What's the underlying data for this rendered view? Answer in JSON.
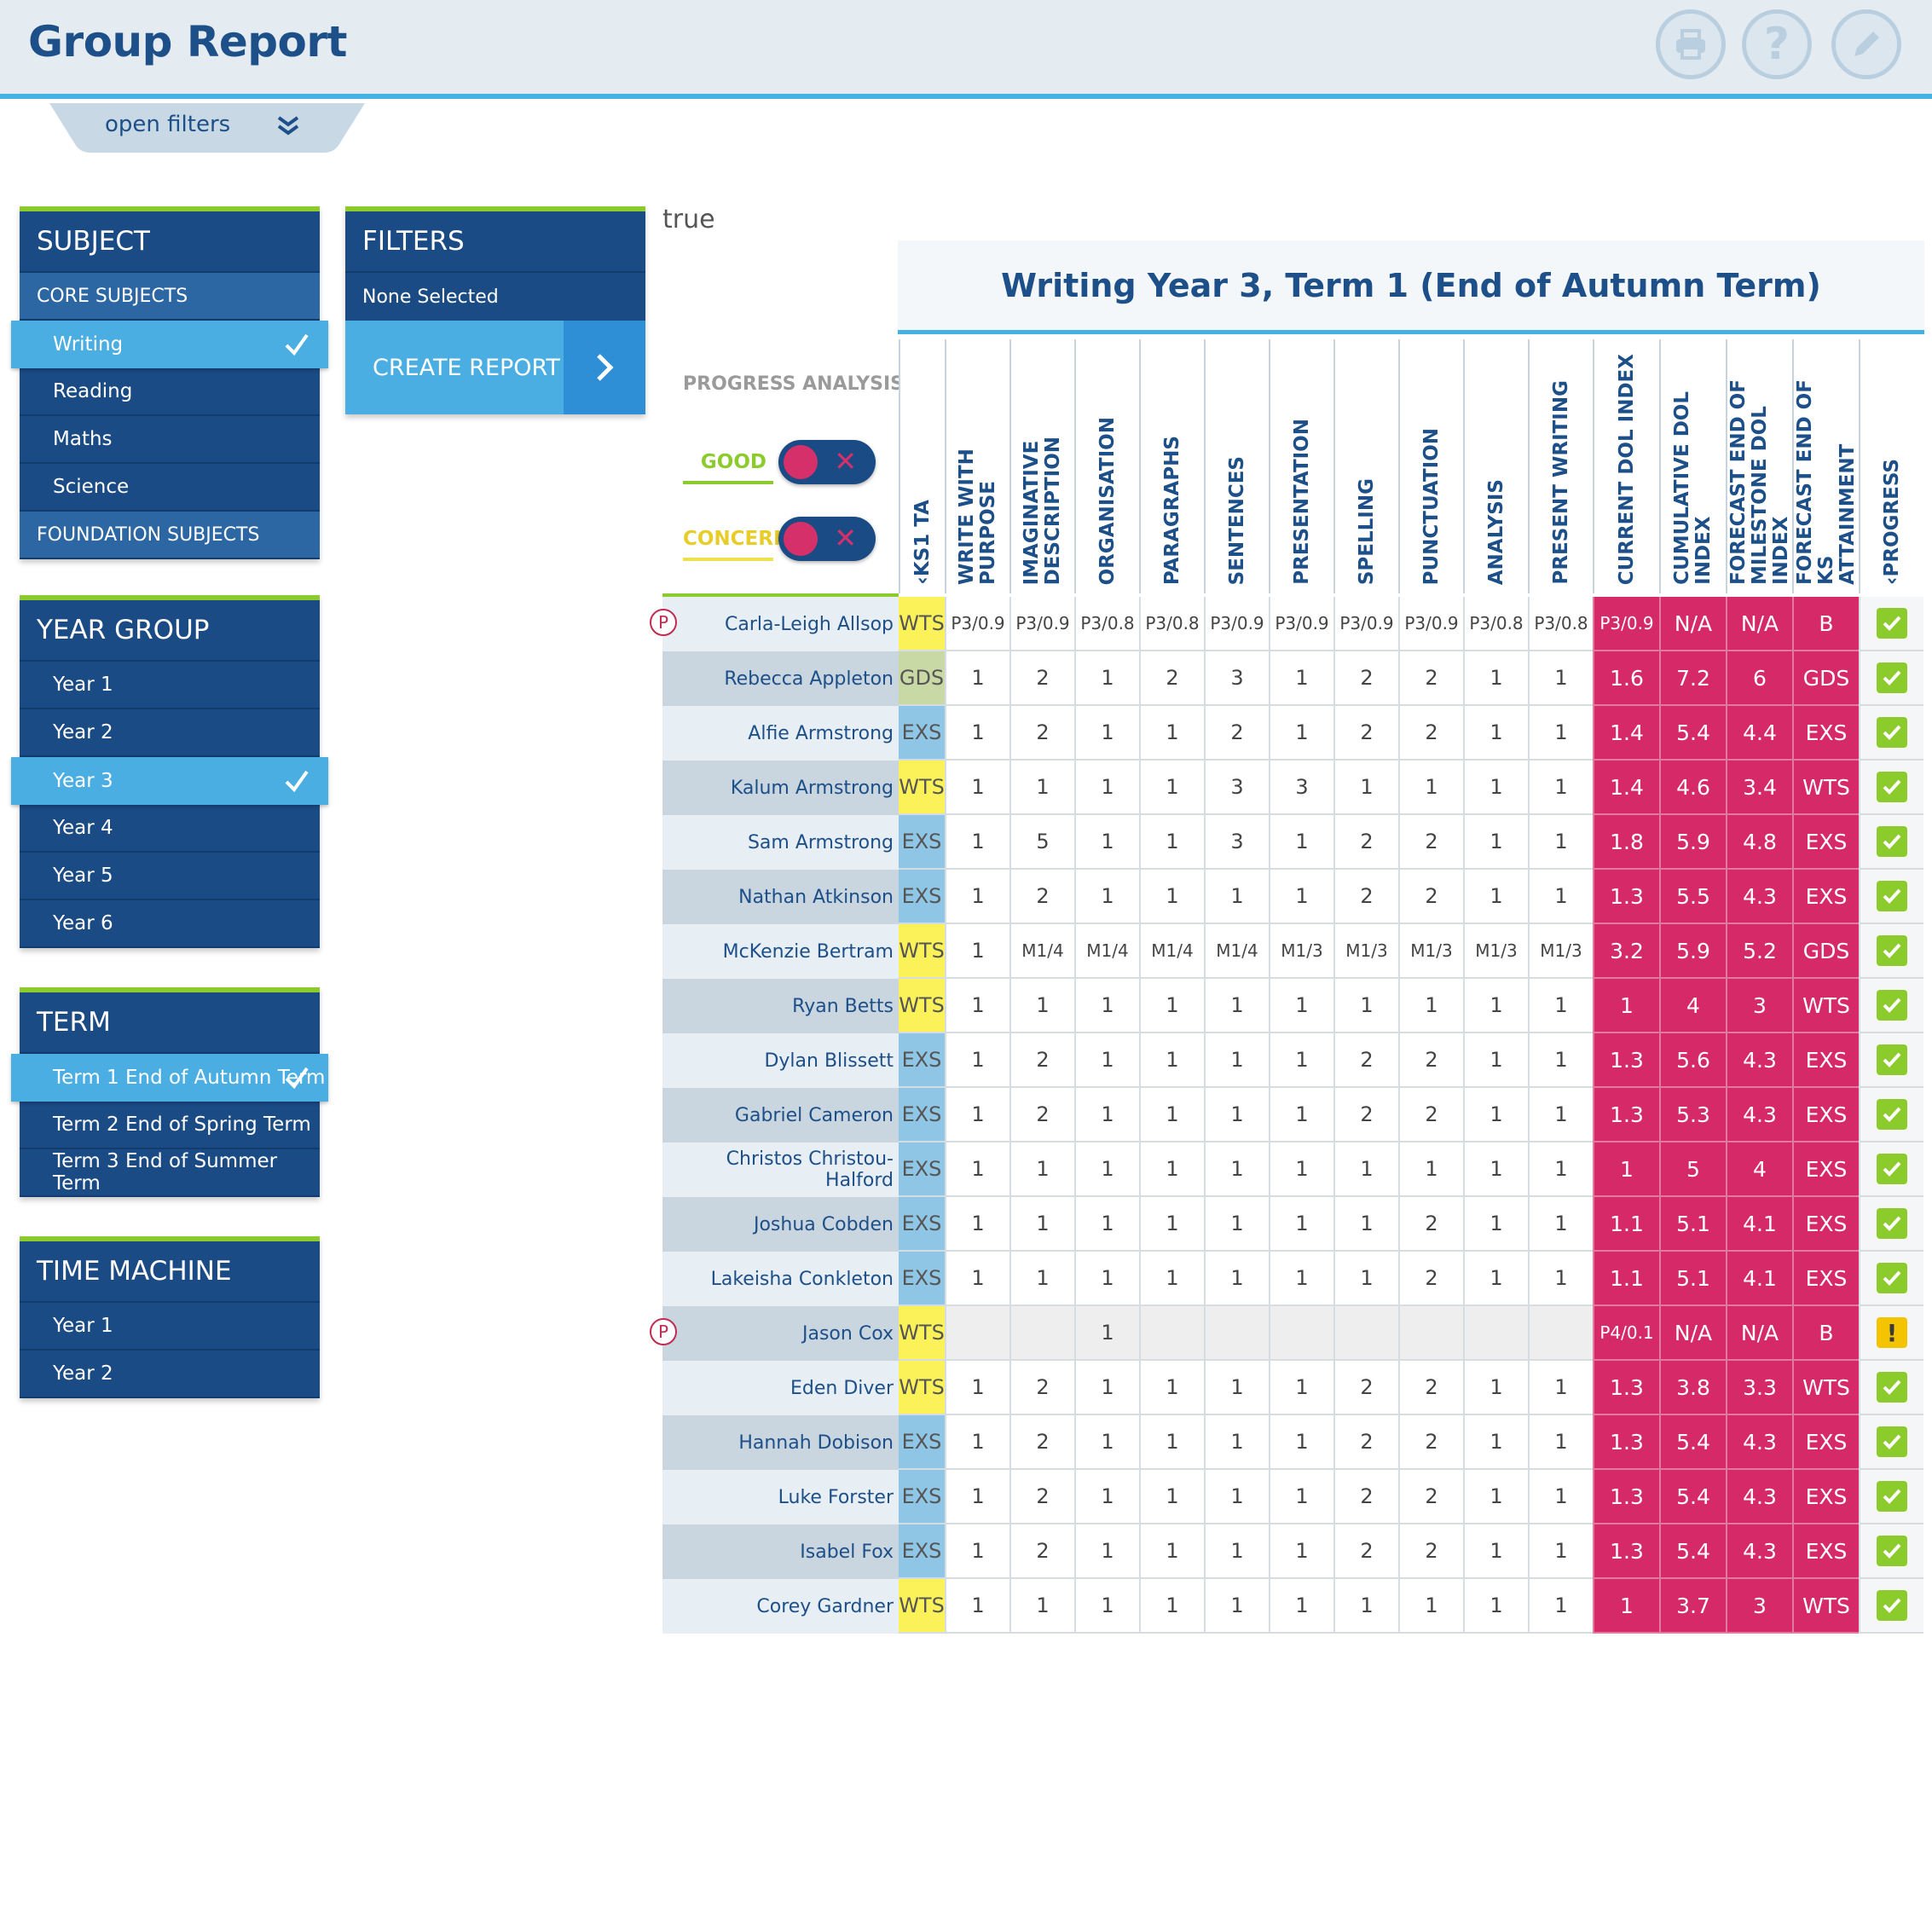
{
  "header": {
    "title": "Group Report",
    "print_icon": "print-icon",
    "help_icon": "help-icon",
    "edit_icon": "pencil-icon"
  },
  "filters_toggle": {
    "label": "open filters"
  },
  "subject": {
    "title": "SUBJECT",
    "core_label": "CORE SUBJECTS",
    "items": [
      "Writing",
      "Reading",
      "Maths",
      "Science"
    ],
    "selected": "Writing",
    "foundation_label": "FOUNDATION SUBJECTS"
  },
  "year_group": {
    "title": "YEAR GROUP",
    "items": [
      "Year 1",
      "Year 2",
      "Year 3",
      "Year 4",
      "Year 5",
      "Year 6"
    ],
    "selected": "Year 3"
  },
  "term": {
    "title": "TERM",
    "items": [
      "Term 1 End of Autumn Term",
      "Term 2 End of Spring Term",
      "Term 3 End of Summer Term"
    ],
    "selected": "Term 1 End of Autumn Term"
  },
  "time_machine": {
    "title": "TIME MACHINE",
    "items": [
      "Year 1",
      "Year 2"
    ]
  },
  "filters": {
    "title": "FILTERS",
    "value": "None Selected",
    "create_label": "CREATE REPORT"
  },
  "debug_text": "true",
  "report": {
    "title": "Writing Year 3, Term 1 (End of Autumn Term)",
    "progress_analysis": "PROGRESS ANALYSIS",
    "good_label": "GOOD",
    "concern_label": "CONCERN",
    "colors": {
      "good": "#8ccb2c",
      "concern": "#f0e04a",
      "pink": "#d52a67",
      "wts": "#fbf25a",
      "exs": "#8fc6e6",
      "gds": "#c9d9a6"
    },
    "columns": [
      "‹KS1 TA",
      "WRITE WITH PURPOSE",
      "IMAGINATIVE\nDESCRIPTION",
      "ORGANISATION",
      "PARAGRAPHS",
      "SENTENCES",
      "PRESENTATION",
      "SPELLING",
      "PUNCTUATION",
      "ANALYSIS",
      "PRESENT WRITING",
      "CURRENT DOL INDEX",
      "CUMULATIVE DOL\nINDEX",
      "FORECAST END OF\nMILESTONE DOL INDEX",
      "FORECAST END OF KS\nATTAINMENT",
      "‹PROGRESS"
    ],
    "rows": [
      {
        "name": "Carla-Leigh Allsop",
        "p": true,
        "ks": "WTS",
        "vals": [
          "P3/0.9",
          "P3/0.9",
          "P3/0.8",
          "P3/0.8",
          "P3/0.9",
          "P3/0.9",
          "P3/0.9",
          "P3/0.9",
          "P3/0.8",
          "P3/0.8"
        ],
        "cur": "P3/0.9",
        "cum": "N/A",
        "fm": "N/A",
        "fks": "B",
        "progress": "good"
      },
      {
        "name": "Rebecca Appleton",
        "ks": "GDS",
        "vals": [
          "1",
          "2",
          "1",
          "2",
          "3",
          "1",
          "2",
          "2",
          "1",
          "1"
        ],
        "cur": "1.6",
        "cum": "7.2",
        "fm": "6",
        "fks": "GDS",
        "progress": "good"
      },
      {
        "name": "Alfie Armstrong",
        "ks": "EXS",
        "vals": [
          "1",
          "2",
          "1",
          "1",
          "2",
          "1",
          "2",
          "2",
          "1",
          "1"
        ],
        "cur": "1.4",
        "cum": "5.4",
        "fm": "4.4",
        "fks": "EXS",
        "progress": "good"
      },
      {
        "name": "Kalum Armstrong",
        "ks": "WTS",
        "vals": [
          "1",
          "1",
          "1",
          "1",
          "3",
          "3",
          "1",
          "1",
          "1",
          "1"
        ],
        "cur": "1.4",
        "cum": "4.6",
        "fm": "3.4",
        "fks": "WTS",
        "progress": "good"
      },
      {
        "name": "Sam Armstrong",
        "ks": "EXS",
        "vals": [
          "1",
          "5",
          "1",
          "1",
          "3",
          "1",
          "2",
          "2",
          "1",
          "1"
        ],
        "cur": "1.8",
        "cum": "5.9",
        "fm": "4.8",
        "fks": "EXS",
        "progress": "good"
      },
      {
        "name": "Nathan Atkinson",
        "ks": "EXS",
        "vals": [
          "1",
          "2",
          "1",
          "1",
          "1",
          "1",
          "2",
          "2",
          "1",
          "1"
        ],
        "cur": "1.3",
        "cum": "5.5",
        "fm": "4.3",
        "fks": "EXS",
        "progress": "good"
      },
      {
        "name": "McKenzie Bertram",
        "ks": "WTS",
        "vals": [
          "1",
          "M1/4",
          "M1/4",
          "M1/4",
          "M1/4",
          "M1/3",
          "M1/3",
          "M1/3",
          "M1/3",
          "M1/3"
        ],
        "cur": "3.2",
        "cum": "5.9",
        "fm": "5.2",
        "fks": "GDS",
        "progress": "good"
      },
      {
        "name": "Ryan Betts",
        "ks": "WTS",
        "vals": [
          "1",
          "1",
          "1",
          "1",
          "1",
          "1",
          "1",
          "1",
          "1",
          "1"
        ],
        "cur": "1",
        "cum": "4",
        "fm": "3",
        "fks": "WTS",
        "progress": "good"
      },
      {
        "name": "Dylan Blissett",
        "ks": "EXS",
        "vals": [
          "1",
          "2",
          "1",
          "1",
          "1",
          "1",
          "2",
          "2",
          "1",
          "1"
        ],
        "cur": "1.3",
        "cum": "5.6",
        "fm": "4.3",
        "fks": "EXS",
        "progress": "good"
      },
      {
        "name": "Gabriel Cameron",
        "ks": "EXS",
        "vals": [
          "1",
          "2",
          "1",
          "1",
          "1",
          "1",
          "2",
          "2",
          "1",
          "1"
        ],
        "cur": "1.3",
        "cum": "5.3",
        "fm": "4.3",
        "fks": "EXS",
        "progress": "good"
      },
      {
        "name": "Christos Christou-Halford",
        "ks": "EXS",
        "vals": [
          "1",
          "1",
          "1",
          "1",
          "1",
          "1",
          "1",
          "1",
          "1",
          "1"
        ],
        "cur": "1",
        "cum": "5",
        "fm": "4",
        "fks": "EXS",
        "progress": "good"
      },
      {
        "name": "Joshua Cobden",
        "ks": "EXS",
        "vals": [
          "1",
          "1",
          "1",
          "1",
          "1",
          "1",
          "1",
          "2",
          "1",
          "1"
        ],
        "cur": "1.1",
        "cum": "5.1",
        "fm": "4.1",
        "fks": "EXS",
        "progress": "good"
      },
      {
        "name": "Lakeisha Conkleton",
        "ks": "EXS",
        "vals": [
          "1",
          "1",
          "1",
          "1",
          "1",
          "1",
          "1",
          "2",
          "1",
          "1"
        ],
        "cur": "1.1",
        "cum": "5.1",
        "fm": "4.1",
        "fks": "EXS",
        "progress": "good"
      },
      {
        "name": "Jason Cox",
        "p": true,
        "ks": "WTS",
        "vals": [
          "",
          "",
          "1",
          "",
          "",
          "",
          "",
          "",
          "",
          ""
        ],
        "cur": "P4/0.1",
        "cum": "N/A",
        "fm": "N/A",
        "fks": "B",
        "progress": "warning"
      },
      {
        "name": "Eden Diver",
        "ks": "WTS",
        "vals": [
          "1",
          "2",
          "1",
          "1",
          "1",
          "1",
          "2",
          "2",
          "1",
          "1"
        ],
        "cur": "1.3",
        "cum": "3.8",
        "fm": "3.3",
        "fks": "WTS",
        "progress": "good"
      },
      {
        "name": "Hannah Dobison",
        "ks": "EXS",
        "vals": [
          "1",
          "2",
          "1",
          "1",
          "1",
          "1",
          "2",
          "2",
          "1",
          "1"
        ],
        "cur": "1.3",
        "cum": "5.4",
        "fm": "4.3",
        "fks": "EXS",
        "progress": "good"
      },
      {
        "name": "Luke Forster",
        "ks": "EXS",
        "vals": [
          "1",
          "2",
          "1",
          "1",
          "1",
          "1",
          "2",
          "2",
          "1",
          "1"
        ],
        "cur": "1.3",
        "cum": "5.4",
        "fm": "4.3",
        "fks": "EXS",
        "progress": "good"
      },
      {
        "name": "Isabel Fox",
        "ks": "EXS",
        "vals": [
          "1",
          "2",
          "1",
          "1",
          "1",
          "1",
          "2",
          "2",
          "1",
          "1"
        ],
        "cur": "1.3",
        "cum": "5.4",
        "fm": "4.3",
        "fks": "EXS",
        "progress": "good"
      },
      {
        "name": "Corey Gardner",
        "ks": "WTS",
        "vals": [
          "1",
          "1",
          "1",
          "1",
          "1",
          "1",
          "1",
          "1",
          "1",
          "1"
        ],
        "cur": "1",
        "cum": "3.7",
        "fm": "3",
        "fks": "WTS",
        "progress": "good"
      }
    ]
  }
}
